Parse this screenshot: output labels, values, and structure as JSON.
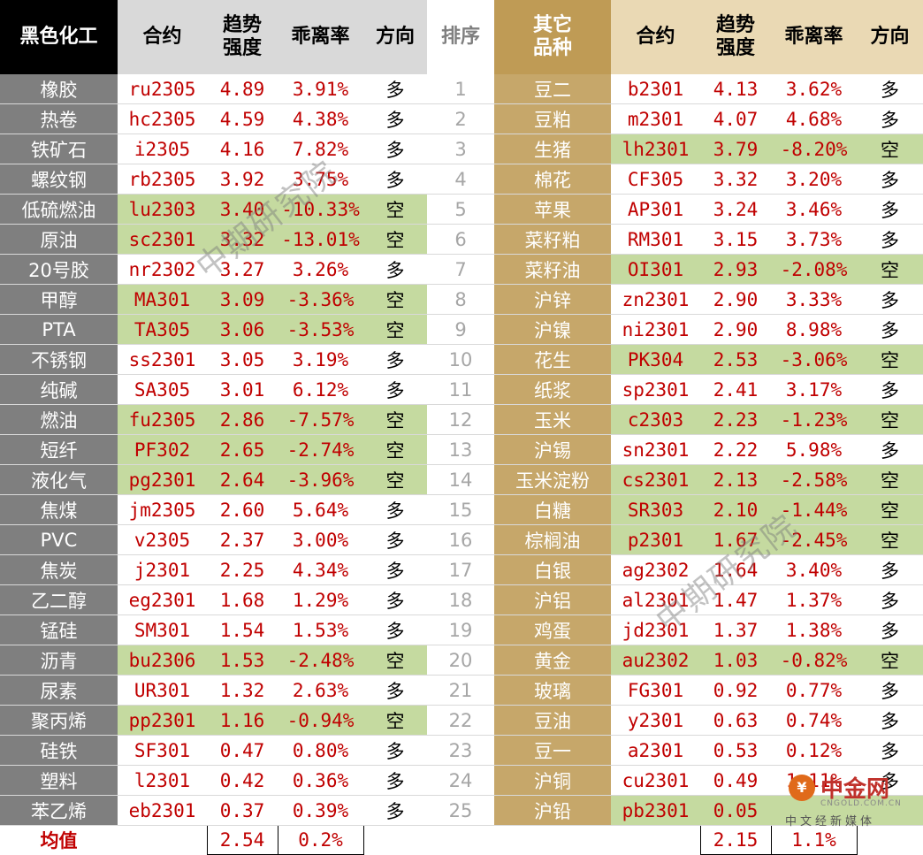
{
  "headers": {
    "left_category": "黑色化工",
    "contract": "合约",
    "trend_line1": "趋势",
    "trend_line2": "强度",
    "deviation": "乖离率",
    "direction": "方向",
    "rank": "排序",
    "right_category_line1": "其它",
    "right_category_line2": "品种"
  },
  "colors": {
    "long_bg": "#ffffff",
    "short_bg": "#c5daa0",
    "left_cat_bg": "#7f7f7f",
    "right_cat_bg": "#c6a76a",
    "red_text": "#c00000"
  },
  "rows": [
    {
      "rank": "1",
      "left": {
        "name": "橡胶",
        "contract": "ru2305",
        "trend": "4.89",
        "dev": "3.91%",
        "dir": "多",
        "short": false
      },
      "right": {
        "name": "豆二",
        "contract": "b2301",
        "trend": "4.13",
        "dev": "3.62%",
        "dir": "多",
        "short": false
      }
    },
    {
      "rank": "2",
      "left": {
        "name": "热卷",
        "contract": "hc2305",
        "trend": "4.59",
        "dev": "4.38%",
        "dir": "多",
        "short": false
      },
      "right": {
        "name": "豆粕",
        "contract": "m2301",
        "trend": "4.07",
        "dev": "4.68%",
        "dir": "多",
        "short": false
      }
    },
    {
      "rank": "3",
      "left": {
        "name": "铁矿石",
        "contract": "i2305",
        "trend": "4.16",
        "dev": "7.82%",
        "dir": "多",
        "short": false
      },
      "right": {
        "name": "生猪",
        "contract": "lh2301",
        "trend": "3.79",
        "dev": "-8.20%",
        "dir": "空",
        "short": true
      }
    },
    {
      "rank": "4",
      "left": {
        "name": "螺纹钢",
        "contract": "rb2305",
        "trend": "3.92",
        "dev": "3.75%",
        "dir": "多",
        "short": false
      },
      "right": {
        "name": "棉花",
        "contract": "CF305",
        "trend": "3.32",
        "dev": "3.20%",
        "dir": "多",
        "short": false
      }
    },
    {
      "rank": "5",
      "left": {
        "name": "低硫燃油",
        "contract": "lu2303",
        "trend": "3.40",
        "dev": "-10.33%",
        "dir": "空",
        "short": true
      },
      "right": {
        "name": "苹果",
        "contract": "AP301",
        "trend": "3.24",
        "dev": "3.46%",
        "dir": "多",
        "short": false
      }
    },
    {
      "rank": "6",
      "left": {
        "name": "原油",
        "contract": "sc2301",
        "trend": "3.32",
        "dev": "-13.01%",
        "dir": "空",
        "short": true
      },
      "right": {
        "name": "菜籽粕",
        "contract": "RM301",
        "trend": "3.15",
        "dev": "3.73%",
        "dir": "多",
        "short": false
      }
    },
    {
      "rank": "7",
      "left": {
        "name": "20号胶",
        "contract": "nr2302",
        "trend": "3.27",
        "dev": "3.26%",
        "dir": "多",
        "short": false
      },
      "right": {
        "name": "菜籽油",
        "contract": "OI301",
        "trend": "2.93",
        "dev": "-2.08%",
        "dir": "空",
        "short": true
      }
    },
    {
      "rank": "8",
      "left": {
        "name": "甲醇",
        "contract": "MA301",
        "trend": "3.09",
        "dev": "-3.36%",
        "dir": "空",
        "short": true
      },
      "right": {
        "name": "沪锌",
        "contract": "zn2301",
        "trend": "2.90",
        "dev": "3.33%",
        "dir": "多",
        "short": false
      }
    },
    {
      "rank": "9",
      "left": {
        "name": "PTA",
        "contract": "TA305",
        "trend": "3.06",
        "dev": "-3.53%",
        "dir": "空",
        "short": true
      },
      "right": {
        "name": "沪镍",
        "contract": "ni2301",
        "trend": "2.90",
        "dev": "8.98%",
        "dir": "多",
        "short": false
      }
    },
    {
      "rank": "10",
      "left": {
        "name": "不锈钢",
        "contract": "ss2301",
        "trend": "3.05",
        "dev": "3.19%",
        "dir": "多",
        "short": false
      },
      "right": {
        "name": "花生",
        "contract": "PK304",
        "trend": "2.53",
        "dev": "-3.06%",
        "dir": "空",
        "short": true
      }
    },
    {
      "rank": "11",
      "left": {
        "name": "纯碱",
        "contract": "SA305",
        "trend": "3.01",
        "dev": "6.12%",
        "dir": "多",
        "short": false
      },
      "right": {
        "name": "纸浆",
        "contract": "sp2301",
        "trend": "2.41",
        "dev": "3.17%",
        "dir": "多",
        "short": false
      }
    },
    {
      "rank": "12",
      "left": {
        "name": "燃油",
        "contract": "fu2305",
        "trend": "2.86",
        "dev": "-7.57%",
        "dir": "空",
        "short": true
      },
      "right": {
        "name": "玉米",
        "contract": "c2303",
        "trend": "2.23",
        "dev": "-1.23%",
        "dir": "空",
        "short": true
      }
    },
    {
      "rank": "13",
      "left": {
        "name": "短纤",
        "contract": "PF302",
        "trend": "2.65",
        "dev": "-2.74%",
        "dir": "空",
        "short": true
      },
      "right": {
        "name": "沪锡",
        "contract": "sn2301",
        "trend": "2.22",
        "dev": "5.98%",
        "dir": "多",
        "short": false
      }
    },
    {
      "rank": "14",
      "left": {
        "name": "液化气",
        "contract": "pg2301",
        "trend": "2.64",
        "dev": "-3.96%",
        "dir": "空",
        "short": true
      },
      "right": {
        "name": "玉米淀粉",
        "contract": "cs2301",
        "trend": "2.13",
        "dev": "-2.58%",
        "dir": "空",
        "short": true
      }
    },
    {
      "rank": "15",
      "left": {
        "name": "焦煤",
        "contract": "jm2305",
        "trend": "2.60",
        "dev": "5.64%",
        "dir": "多",
        "short": false
      },
      "right": {
        "name": "白糖",
        "contract": "SR303",
        "trend": "2.10",
        "dev": "-1.44%",
        "dir": "空",
        "short": true
      }
    },
    {
      "rank": "16",
      "left": {
        "name": "PVC",
        "contract": "v2305",
        "trend": "2.37",
        "dev": "3.00%",
        "dir": "多",
        "short": false
      },
      "right": {
        "name": "棕榈油",
        "contract": "p2301",
        "trend": "1.67",
        "dev": "-2.45%",
        "dir": "空",
        "short": true
      }
    },
    {
      "rank": "17",
      "left": {
        "name": "焦炭",
        "contract": "j2301",
        "trend": "2.25",
        "dev": "4.34%",
        "dir": "多",
        "short": false
      },
      "right": {
        "name": "白银",
        "contract": "ag2302",
        "trend": "1.64",
        "dev": "3.40%",
        "dir": "多",
        "short": false
      }
    },
    {
      "rank": "18",
      "left": {
        "name": "乙二醇",
        "contract": "eg2301",
        "trend": "1.68",
        "dev": "1.29%",
        "dir": "多",
        "short": false
      },
      "right": {
        "name": "沪铝",
        "contract": "al2301",
        "trend": "1.47",
        "dev": "1.37%",
        "dir": "多",
        "short": false
      }
    },
    {
      "rank": "19",
      "left": {
        "name": "锰硅",
        "contract": "SM301",
        "trend": "1.54",
        "dev": "1.53%",
        "dir": "多",
        "short": false
      },
      "right": {
        "name": "鸡蛋",
        "contract": "jd2301",
        "trend": "1.37",
        "dev": "1.38%",
        "dir": "多",
        "short": false
      }
    },
    {
      "rank": "20",
      "left": {
        "name": "沥青",
        "contract": "bu2306",
        "trend": "1.53",
        "dev": "-2.48%",
        "dir": "空",
        "short": true
      },
      "right": {
        "name": "黄金",
        "contract": "au2302",
        "trend": "1.03",
        "dev": "-0.82%",
        "dir": "空",
        "short": true
      }
    },
    {
      "rank": "21",
      "left": {
        "name": "尿素",
        "contract": "UR301",
        "trend": "1.32",
        "dev": "2.63%",
        "dir": "多",
        "short": false
      },
      "right": {
        "name": "玻璃",
        "contract": "FG301",
        "trend": "0.92",
        "dev": "0.77%",
        "dir": "多",
        "short": false
      }
    },
    {
      "rank": "22",
      "left": {
        "name": "聚丙烯",
        "contract": "pp2301",
        "trend": "1.16",
        "dev": "-0.94%",
        "dir": "空",
        "short": true
      },
      "right": {
        "name": "豆油",
        "contract": "y2301",
        "trend": "0.63",
        "dev": "0.74%",
        "dir": "多",
        "short": false
      }
    },
    {
      "rank": "23",
      "left": {
        "name": "硅铁",
        "contract": "SF301",
        "trend": "0.47",
        "dev": "0.80%",
        "dir": "多",
        "short": false
      },
      "right": {
        "name": "豆一",
        "contract": "a2301",
        "trend": "0.53",
        "dev": "0.12%",
        "dir": "多",
        "short": false
      }
    },
    {
      "rank": "24",
      "left": {
        "name": "塑料",
        "contract": "l2301",
        "trend": "0.42",
        "dev": "0.36%",
        "dir": "多",
        "short": false
      },
      "right": {
        "name": "沪铜",
        "contract": "cu2301",
        "trend": "0.49",
        "dev": "1.11%",
        "dir": "多",
        "short": false
      }
    },
    {
      "rank": "25",
      "left": {
        "name": "苯乙烯",
        "contract": "eb2301",
        "trend": "0.37",
        "dev": "0.39%",
        "dir": "多",
        "short": false
      },
      "right": {
        "name": "沪铅",
        "contract": "pb2301",
        "trend": "0.05",
        "dev": "",
        "dir": "",
        "short": true
      }
    }
  ],
  "footer": {
    "avg_label": "均值",
    "left_trend_avg": "2.54",
    "left_dev_avg": "0.2%",
    "right_trend_avg": "2.15",
    "right_dev_avg": "1.1%"
  },
  "watermark": "中期研究院",
  "logo": {
    "name": "中金网",
    "url": "CNGOLD.COM.CN",
    "sub": "中文经新媒体",
    "icon": "coin-logo-icon"
  }
}
